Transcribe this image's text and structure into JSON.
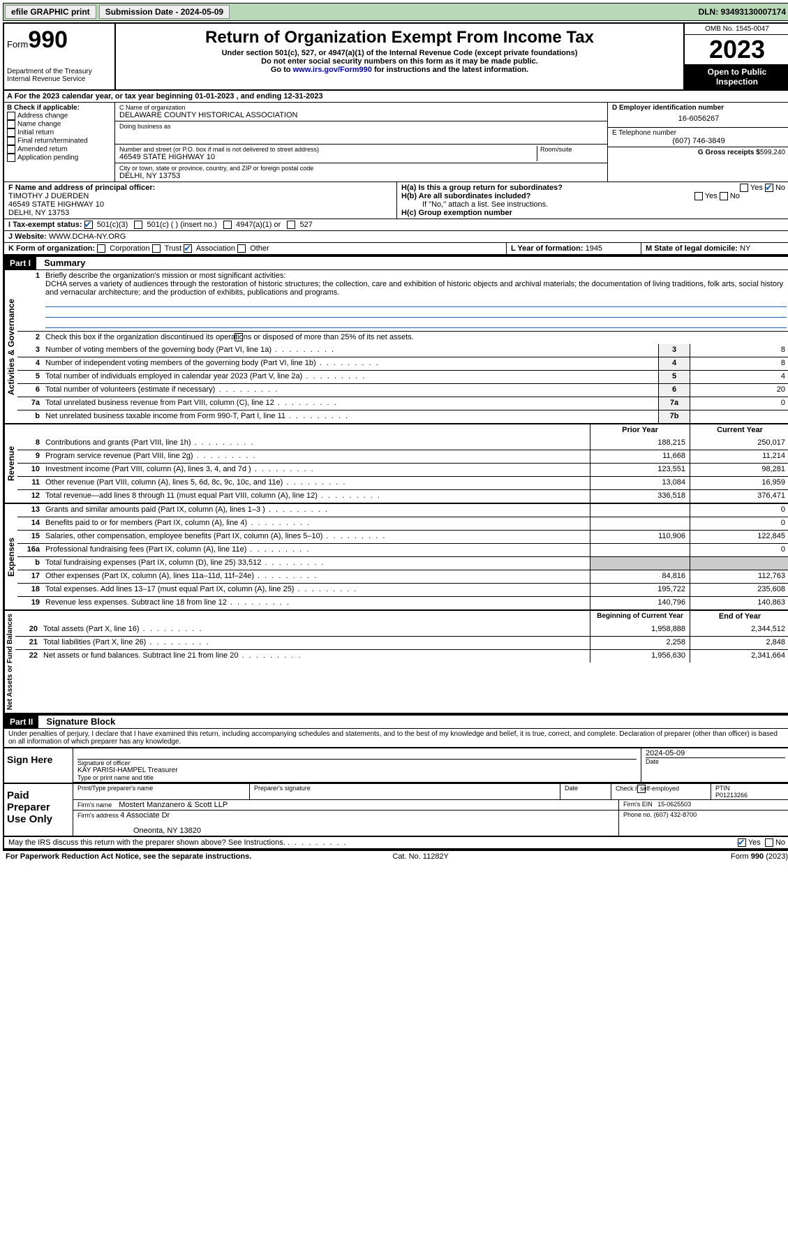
{
  "topbar": {
    "efile": "efile GRAPHIC print",
    "submission_label": "Submission Date - 2024-05-09",
    "dln": "DLN: 93493130007174"
  },
  "header": {
    "form_label": "Form",
    "form_number": "990",
    "dept": "Department of the Treasury\nInternal Revenue Service",
    "title": "Return of Organization Exempt From Income Tax",
    "subtitle1": "Under section 501(c), 527, or 4947(a)(1) of the Internal Revenue Code (except private foundations)",
    "subtitle2": "Do not enter social security numbers on this form as it may be made public.",
    "subtitle3_pre": "Go to ",
    "subtitle3_link": "www.irs.gov/Form990",
    "subtitle3_post": " for instructions and the latest information.",
    "omb": "OMB No. 1545-0047",
    "year": "2023",
    "open": "Open to Public Inspection"
  },
  "row_a": "A   For the 2023 calendar year, or tax year beginning 01-01-2023    , and ending 12-31-2023",
  "section_b": {
    "label": "B Check if applicable:",
    "opts": [
      "Address change",
      "Name change",
      "Initial return",
      "Final return/terminated",
      "Amended return",
      "Application pending"
    ]
  },
  "section_c": {
    "name_lbl": "C Name of organization",
    "name": "DELAWARE COUNTY HISTORICAL ASSOCIATION",
    "dba_lbl": "Doing business as",
    "dba": "",
    "street_lbl": "Number and street (or P.O. box if mail is not delivered to street address)",
    "room_lbl": "Room/suite",
    "street": "46549 STATE HIGHWAY 10",
    "city_lbl": "City or town, state or province, country, and ZIP or foreign postal code",
    "city": "DELHI, NY  13753"
  },
  "section_d": {
    "ein_lbl": "D Employer identification number",
    "ein": "16-6056267",
    "phone_lbl": "E Telephone number",
    "phone": "(607) 746-3849",
    "gross_lbl": "G Gross receipts $",
    "gross": "599,240"
  },
  "section_f": {
    "lbl": "F Name and address of principal officer:",
    "name": "TIMOTHY J DUERDEN",
    "street": "46549 STATE HIGHWAY 10",
    "city": "DELHI, NY  13753"
  },
  "section_h": {
    "ha": "H(a)  Is this a group return for subordinates?",
    "hb": "H(b)  Are all subordinates included?",
    "hb_note": "If \"No,\" attach a list. See instructions.",
    "hc": "H(c)  Group exemption number",
    "yes": "Yes",
    "no": "No"
  },
  "section_i": {
    "lbl": "I      Tax-exempt status:",
    "o1": "501(c)(3)",
    "o2": "501(c) (  ) (insert no.)",
    "o3": "4947(a)(1) or",
    "o4": "527"
  },
  "section_j": {
    "lbl": "J     Website: ",
    "val": "WWW.DCHA-NY.ORG"
  },
  "section_k": {
    "lbl": "K Form of organization:",
    "opts": [
      "Corporation",
      "Trust",
      "Association",
      "Other"
    ]
  },
  "section_l": {
    "lbl": "L Year of formation:",
    "val": "1945"
  },
  "section_m": {
    "lbl": "M State of legal domicile:",
    "val": "NY"
  },
  "part1": {
    "hdr": "Part I",
    "title": "Summary",
    "q1_lbl": "Briefly describe the organization's mission or most significant activities:",
    "q1_text": "DCHA serves a variety of audiences through the restoration of historic structures; the collection, care and exhibition of historic objects and archival materials; the documentation of living traditions, folk arts, social history and vernacular architecture; and the production of exhibits, publications and programs.",
    "q2": "Check this box          if the organization discontinued its operations or disposed of more than 25% of its net assets.",
    "governance_label": "Activities & Governance",
    "revenue_label": "Revenue",
    "expenses_label": "Expenses",
    "netassets_label": "Net Assets or Fund Balances",
    "lines_gov": [
      {
        "n": "3",
        "t": "Number of voting members of the governing body (Part VI, line 1a)",
        "box": "3",
        "v": "8"
      },
      {
        "n": "4",
        "t": "Number of independent voting members of the governing body (Part VI, line 1b)",
        "box": "4",
        "v": "8"
      },
      {
        "n": "5",
        "t": "Total number of individuals employed in calendar year 2023 (Part V, line 2a)",
        "box": "5",
        "v": "4"
      },
      {
        "n": "6",
        "t": "Total number of volunteers (estimate if necessary)",
        "box": "6",
        "v": "20"
      },
      {
        "n": "7a",
        "t": "Total unrelated business revenue from Part VIII, column (C), line 12",
        "box": "7a",
        "v": "0"
      },
      {
        "n": "b",
        "t": "Net unrelated business taxable income from Form 990-T, Part I, line 11",
        "box": "7b",
        "v": ""
      }
    ],
    "col_prior": "Prior Year",
    "col_current": "Current Year",
    "lines_rev": [
      {
        "n": "8",
        "t": "Contributions and grants (Part VIII, line 1h)",
        "p": "188,215",
        "c": "250,017"
      },
      {
        "n": "9",
        "t": "Program service revenue (Part VIII, line 2g)",
        "p": "11,668",
        "c": "11,214"
      },
      {
        "n": "10",
        "t": "Investment income (Part VIII, column (A), lines 3, 4, and 7d )",
        "p": "123,551",
        "c": "98,281"
      },
      {
        "n": "11",
        "t": "Other revenue (Part VIII, column (A), lines 5, 6d, 8c, 9c, 10c, and 11e)",
        "p": "13,084",
        "c": "16,959"
      },
      {
        "n": "12",
        "t": "Total revenue—add lines 8 through 11 (must equal Part VIII, column (A), line 12)",
        "p": "336,518",
        "c": "376,471"
      }
    ],
    "lines_exp": [
      {
        "n": "13",
        "t": "Grants and similar amounts paid (Part IX, column (A), lines 1–3 )",
        "p": "",
        "c": "0"
      },
      {
        "n": "14",
        "t": "Benefits paid to or for members (Part IX, column (A), line 4)",
        "p": "",
        "c": "0"
      },
      {
        "n": "15",
        "t": "Salaries, other compensation, employee benefits (Part IX, column (A), lines 5–10)",
        "p": "110,906",
        "c": "122,845"
      },
      {
        "n": "16a",
        "t": "Professional fundraising fees (Part IX, column (A), line 11e)",
        "p": "",
        "c": "0"
      },
      {
        "n": "b",
        "t": "Total fundraising expenses (Part IX, column (D), line 25) 33,512",
        "p": "shade",
        "c": "shade"
      },
      {
        "n": "17",
        "t": "Other expenses (Part IX, column (A), lines 11a–11d, 11f–24e)",
        "p": "84,816",
        "c": "112,763"
      },
      {
        "n": "18",
        "t": "Total expenses. Add lines 13–17 (must equal Part IX, column (A), line 25)",
        "p": "195,722",
        "c": "235,608"
      },
      {
        "n": "19",
        "t": "Revenue less expenses. Subtract line 18 from line 12",
        "p": "140,796",
        "c": "140,863"
      }
    ],
    "col_begin": "Beginning of Current Year",
    "col_end": "End of Year",
    "lines_net": [
      {
        "n": "20",
        "t": "Total assets (Part X, line 16)",
        "p": "1,958,888",
        "c": "2,344,512"
      },
      {
        "n": "21",
        "t": "Total liabilities (Part X, line 26)",
        "p": "2,258",
        "c": "2,848"
      },
      {
        "n": "22",
        "t": "Net assets or fund balances. Subtract line 21 from line 20",
        "p": "1,956,630",
        "c": "2,341,664"
      }
    ]
  },
  "part2": {
    "hdr": "Part II",
    "title": "Signature Block",
    "perjury": "Under penalties of perjury, I declare that I have examined this return, including accompanying schedules and statements, and to the best of my knowledge and belief, it is true, correct, and complete. Declaration of preparer (other than officer) is based on all information of which preparer has any knowledge.",
    "sign_here": "Sign Here",
    "sig_officer_lbl": "Signature of officer",
    "sig_officer": "KAY PARISI-HAMPEL  Treasurer",
    "sig_type_lbl": "Type or print name and title",
    "date_lbl": "Date",
    "date": "2024-05-09",
    "paid": "Paid Preparer Use Only",
    "prep_name_lbl": "Print/Type preparer's name",
    "prep_sig_lbl": "Preparer's signature",
    "check_lbl": "Check          if self-employed",
    "ptin_lbl": "PTIN",
    "ptin": "P01213266",
    "firm_name_lbl": "Firm's name",
    "firm_name": "Mostert Manzanero & Scott LLP",
    "firm_ein_lbl": "Firm's EIN",
    "firm_ein": "15-0625503",
    "firm_addr_lbl": "Firm's address",
    "firm_addr1": "4 Associate Dr",
    "firm_addr2": "Oneonta, NY  13820",
    "phone_lbl": "Phone no.",
    "phone": "(607) 432-8700",
    "discuss": "May the IRS discuss this return with the preparer shown above? See Instructions.",
    "yes": "Yes",
    "no": "No"
  },
  "footer": {
    "left": "For Paperwork Reduction Act Notice, see the separate instructions.",
    "mid": "Cat. No. 11282Y",
    "right": "Form 990 (2023)"
  }
}
